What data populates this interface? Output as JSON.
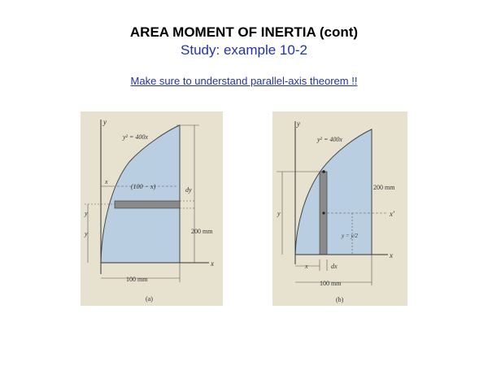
{
  "slide": {
    "title": "AREA MOMENT OF INERTIA (cont)",
    "subtitle": "Study: example 10-2",
    "link_text": "Make sure to understand parallel-axis theorem !!"
  },
  "figure_a": {
    "curve_label": "y² = 400x",
    "y_axis": "y",
    "x_axis": "x",
    "x_dim": "x",
    "strip_dim": "(100 − x)",
    "dy_label": "dy",
    "y_dim": "y",
    "y_dim2": "y",
    "height_dim": "200 mm",
    "width_dim": "100 mm",
    "caption": "(a)"
  },
  "figure_b": {
    "curve_label": "y² = 400x",
    "y_axis": "y",
    "x_axis": "x",
    "xprime_axis": "x′",
    "height_dim": "200 mm",
    "y_dim": "y",
    "centroid_label": "y = y/2",
    "x_dim": "x",
    "dx_label": "dx",
    "width_dim": "100 mm",
    "caption": "(b)"
  },
  "colors": {
    "area_fill": "#b9cfe1",
    "strip_fill": "#8a8a8a",
    "panel_bg": "#e6e2cf",
    "link": "#2233aa"
  }
}
